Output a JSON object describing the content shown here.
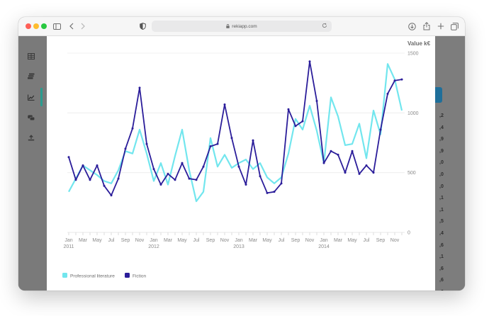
{
  "browser": {
    "url": "rekiapp.com"
  },
  "sidebar": {
    "items": [
      {
        "icon": "table-icon"
      },
      {
        "icon": "stack-icon"
      },
      {
        "icon": "chart-icon",
        "active": true
      },
      {
        "icon": "chat-icon"
      },
      {
        "icon": "upload-icon"
      }
    ]
  },
  "right_strip": {
    "numbers": [
      ",2",
      ",4",
      ",9",
      ",9",
      ",0",
      ",0",
      ",0",
      ",1",
      ",1",
      ",5",
      ",4",
      ",6",
      ",1",
      ",6",
      ",6",
      ",6"
    ]
  },
  "chart_data": {
    "type": "line",
    "ylabel": "Value k€",
    "ylim": [
      0,
      1500
    ],
    "y_ticks": [
      0,
      500,
      1000,
      1500
    ],
    "x_tick_labels": [
      "Jan",
      "Mar",
      "May",
      "Jul",
      "Sep",
      "Nov",
      "Jan",
      "Mar",
      "May",
      "Jul",
      "Sep",
      "Nov",
      "Jan",
      "Mar",
      "May",
      "Jul",
      "Sep",
      "Nov",
      "Jan",
      "Mar",
      "May",
      "Jul",
      "Sep",
      "Nov"
    ],
    "year_labels": [
      {
        "index": 0,
        "label": "2011"
      },
      {
        "index": 12,
        "label": "2012"
      },
      {
        "index": 24,
        "label": "2013"
      },
      {
        "index": 36,
        "label": "2014"
      }
    ],
    "grid": true,
    "legend_position": "bottom-left",
    "series": [
      {
        "name": "Professional literature",
        "color": "#72e6ee",
        "values": [
          340,
          450,
          560,
          520,
          480,
          430,
          410,
          520,
          680,
          660,
          860,
          660,
          430,
          580,
          400,
          640,
          860,
          520,
          260,
          340,
          790,
          550,
          650,
          540,
          580,
          610,
          530,
          580,
          460,
          410,
          460,
          660,
          950,
          860,
          1060,
          850,
          580,
          1130,
          970,
          730,
          740,
          910,
          620,
          1020,
          820,
          1410,
          1280,
          1020
        ]
      },
      {
        "name": "Fiction",
        "color": "#2b1d9a",
        "values": [
          630,
          440,
          560,
          440,
          560,
          390,
          310,
          450,
          700,
          870,
          1210,
          740,
          530,
          400,
          490,
          440,
          580,
          450,
          440,
          550,
          720,
          740,
          1070,
          790,
          550,
          400,
          770,
          470,
          330,
          340,
          410,
          1030,
          890,
          930,
          1430,
          1100,
          580,
          680,
          650,
          500,
          680,
          490,
          560,
          500,
          860,
          1160,
          1270,
          1280
        ]
      }
    ]
  }
}
